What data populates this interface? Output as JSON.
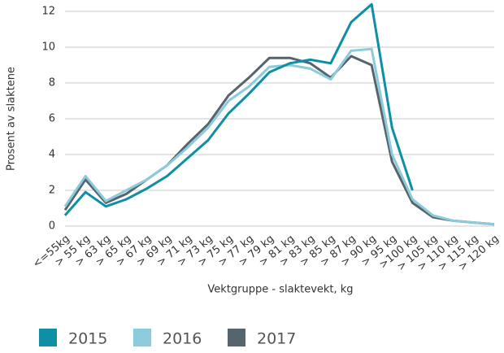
{
  "chart_data": {
    "type": "line",
    "x_label": "Vektgruppe - slaktevekt, kg",
    "y_label": "Prosent av slaktene",
    "categories": [
      "<=55kg",
      "> 55 kg",
      "> 63 kg",
      "> 65 kg",
      "> 67 kg",
      "> 69 kg",
      "> 71 kg",
      "> 73 kg",
      "> 75 kg",
      "> 77 kg",
      "> 79 kg",
      "> 81 kg",
      "> 83 kg",
      "> 85 kg",
      "> 87 kg",
      "> 90 kg",
      "> 95 kg",
      ">100 kg",
      "> 105 kg",
      "> 110 kg",
      "> 115 kg",
      "> 120 kg"
    ],
    "series": [
      {
        "name": "2015",
        "color": "#0e8fa3",
        "values": [
          0.6,
          1.9,
          1.1,
          1.5,
          2.1,
          2.8,
          3.8,
          4.8,
          6.3,
          7.4,
          8.6,
          9.1,
          9.3,
          9.1,
          11.4,
          12.4,
          5.5,
          2.0,
          null,
          null,
          null,
          null
        ]
      },
      {
        "name": "2016",
        "color": "#8ccbdb",
        "values": [
          1.1,
          2.8,
          1.4,
          2.0,
          2.6,
          3.4,
          4.4,
          5.5,
          7.0,
          7.8,
          8.9,
          9.0,
          8.8,
          8.2,
          9.8,
          9.9,
          4.0,
          1.5,
          0.6,
          0.3,
          0.2,
          0.1
        ]
      },
      {
        "name": "2017",
        "color": "#56646e",
        "values": [
          0.9,
          2.6,
          1.3,
          1.8,
          2.6,
          3.4,
          4.6,
          5.7,
          7.3,
          8.3,
          9.4,
          9.4,
          9.1,
          8.3,
          9.5,
          9.0,
          3.6,
          1.3,
          0.5,
          0.3,
          0.2,
          0.1
        ]
      }
    ],
    "ylim": [
      0,
      12
    ],
    "yticks": [
      0,
      2,
      4,
      6,
      8,
      10,
      12
    ],
    "grid": true
  }
}
